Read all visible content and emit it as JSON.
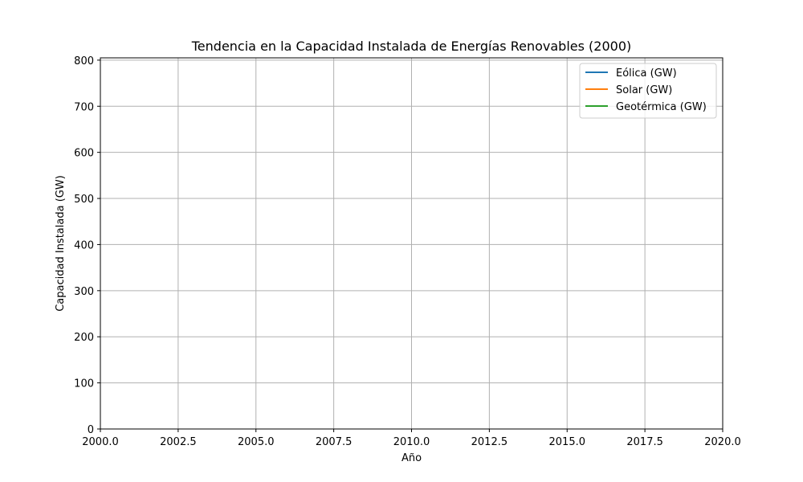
{
  "chart_data": {
    "type": "line",
    "title": "Tendencia en la Capacidad Instalada de Energías Renovables (2000)",
    "xlabel": "Año",
    "ylabel": "Capacidad Instalada (GW)",
    "xlim": [
      2000,
      2020
    ],
    "ylim": [
      0,
      805
    ],
    "xticks": [
      2000,
      2002.5,
      2005,
      2007.5,
      2010,
      2012.5,
      2015,
      2017.5,
      2020
    ],
    "xtick_labels": [
      "2000.0",
      "2002.5",
      "2005.0",
      "2007.5",
      "2010.0",
      "2012.5",
      "2015.0",
      "2017.5",
      "2020.0"
    ],
    "yticks": [
      0,
      100,
      200,
      300,
      400,
      500,
      600,
      700,
      800
    ],
    "ytick_labels": [
      "0",
      "100",
      "200",
      "300",
      "400",
      "500",
      "600",
      "700",
      "800"
    ],
    "grid": true,
    "legend_position": "top-right",
    "series": [
      {
        "name": "Eólica (GW)",
        "color": "#1f77b4",
        "x": [],
        "values": []
      },
      {
        "name": "Solar (GW)",
        "color": "#ff7f0e",
        "x": [],
        "values": []
      },
      {
        "name": "Geotérmica (GW)",
        "color": "#2ca02c",
        "x": [],
        "values": []
      }
    ]
  }
}
